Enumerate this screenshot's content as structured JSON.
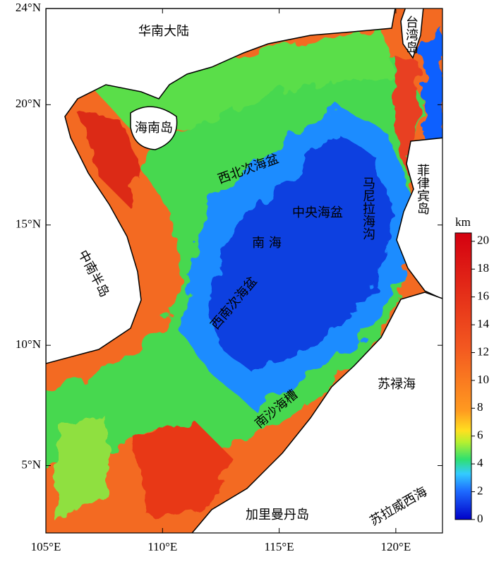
{
  "map": {
    "xlim": [
      105,
      122
    ],
    "ylim": [
      2.2,
      24
    ],
    "xticks": [
      {
        "value": 105,
        "label": "105°E"
      },
      {
        "value": 110,
        "label": "110°E"
      },
      {
        "value": 115,
        "label": "115°E"
      },
      {
        "value": 120,
        "label": "120°E"
      }
    ],
    "yticks": [
      {
        "value": 5,
        "label": "5°N"
      },
      {
        "value": 10,
        "label": "10°N"
      },
      {
        "value": 15,
        "label": "15°N"
      },
      {
        "value": 20,
        "label": "20°N"
      },
      {
        "value": 24,
        "label": "24°N"
      }
    ],
    "labels": [
      "华南大陆",
      "台湾岛",
      "海南岛",
      "西北次海盆",
      "马尼拉海沟",
      "菲律宾岛",
      "中央海盆",
      "南 海",
      "中南半岛",
      "西南次海盆",
      "苏禄海",
      "南沙海槽",
      "加里曼丹岛",
      "苏拉威西海"
    ]
  },
  "colorbar": {
    "title": "km",
    "ylim": [
      0,
      20.6
    ],
    "yticks": [
      0,
      2,
      4,
      6,
      8,
      10,
      12,
      14,
      16,
      18,
      20
    ]
  }
}
